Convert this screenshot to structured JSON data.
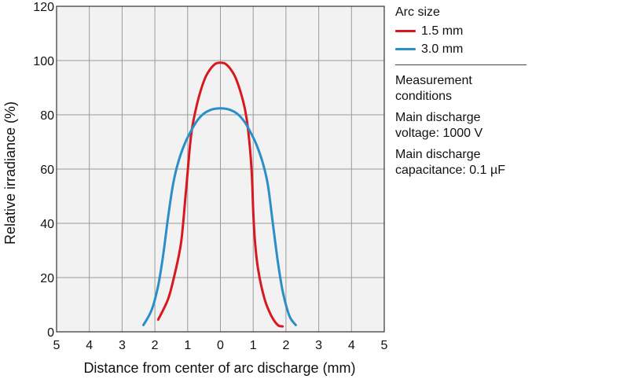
{
  "chart_data": {
    "type": "line",
    "xlabel": "Distance from center of arc discharge (mm)",
    "ylabel": "Relative irradiance (%)",
    "xlim": [
      -5,
      5
    ],
    "ylim": [
      0,
      120
    ],
    "x_ticks": [
      -5,
      -4,
      -3,
      -2,
      -1,
      0,
      1,
      2,
      3,
      4,
      5
    ],
    "x_tick_labels": [
      "5",
      "4",
      "3",
      "2",
      "1",
      "0",
      "1",
      "2",
      "3",
      "4",
      "5"
    ],
    "y_ticks": [
      0,
      20,
      40,
      60,
      80,
      100,
      120
    ],
    "y_tick_labels": [
      "0",
      "20",
      "40",
      "60",
      "80",
      "100",
      "120"
    ],
    "grid": true,
    "legend_placement": "right",
    "legend_title": "Arc size",
    "series": [
      {
        "name": "1.5 mm",
        "color": "#d7191f",
        "points": [
          [
            -1.9,
            4.5
          ],
          [
            -1.6,
            12
          ],
          [
            -1.4,
            21
          ],
          [
            -1.2,
            33
          ],
          [
            -1.05,
            52
          ],
          [
            -0.9,
            72
          ],
          [
            -0.75,
            82
          ],
          [
            -0.6,
            89
          ],
          [
            -0.45,
            94
          ],
          [
            -0.3,
            97
          ],
          [
            -0.15,
            98.8
          ],
          [
            0,
            99.2
          ],
          [
            0.15,
            98.8
          ],
          [
            0.3,
            97
          ],
          [
            0.45,
            94
          ],
          [
            0.6,
            89
          ],
          [
            0.75,
            82
          ],
          [
            0.85,
            74
          ],
          [
            0.95,
            60
          ],
          [
            1.0,
            45
          ],
          [
            1.05,
            34
          ],
          [
            1.15,
            23
          ],
          [
            1.35,
            12
          ],
          [
            1.55,
            6
          ],
          [
            1.75,
            2.5
          ],
          [
            1.9,
            2.0
          ]
        ]
      },
      {
        "name": "3.0 mm",
        "color": "#2a8fc9",
        "points": [
          [
            -2.35,
            2.5
          ],
          [
            -2.1,
            8
          ],
          [
            -1.9,
            17
          ],
          [
            -1.75,
            28
          ],
          [
            -1.6,
            42
          ],
          [
            -1.45,
            54
          ],
          [
            -1.3,
            62
          ],
          [
            -1.1,
            69
          ],
          [
            -0.9,
            74
          ],
          [
            -0.7,
            78
          ],
          [
            -0.5,
            80.5
          ],
          [
            -0.25,
            82
          ],
          [
            0,
            82.4
          ],
          [
            0.25,
            82
          ],
          [
            0.5,
            80.5
          ],
          [
            0.7,
            78
          ],
          [
            0.9,
            74
          ],
          [
            1.1,
            69
          ],
          [
            1.3,
            62
          ],
          [
            1.45,
            54
          ],
          [
            1.6,
            40
          ],
          [
            1.75,
            26
          ],
          [
            1.9,
            15
          ],
          [
            2.1,
            6
          ],
          [
            2.3,
            2.5
          ]
        ]
      }
    ]
  },
  "legend": {
    "title": "Arc size",
    "items": [
      {
        "label": "1.5 mm",
        "color": "#d7191f"
      },
      {
        "label": "3.0 mm",
        "color": "#2a8fc9"
      }
    ]
  },
  "conditions": {
    "title_line1": "Measurement",
    "title_line2": "conditions",
    "voltage_line1": "Main discharge",
    "voltage_line2": "voltage: 1000 V",
    "capacitance_line1": "Main discharge",
    "capacitance_line2": "capacitance: 0.1 µF"
  },
  "colors": {
    "plot_background": "#f2f2f2",
    "grid": "#9a9a9a",
    "frame": "#333333"
  }
}
